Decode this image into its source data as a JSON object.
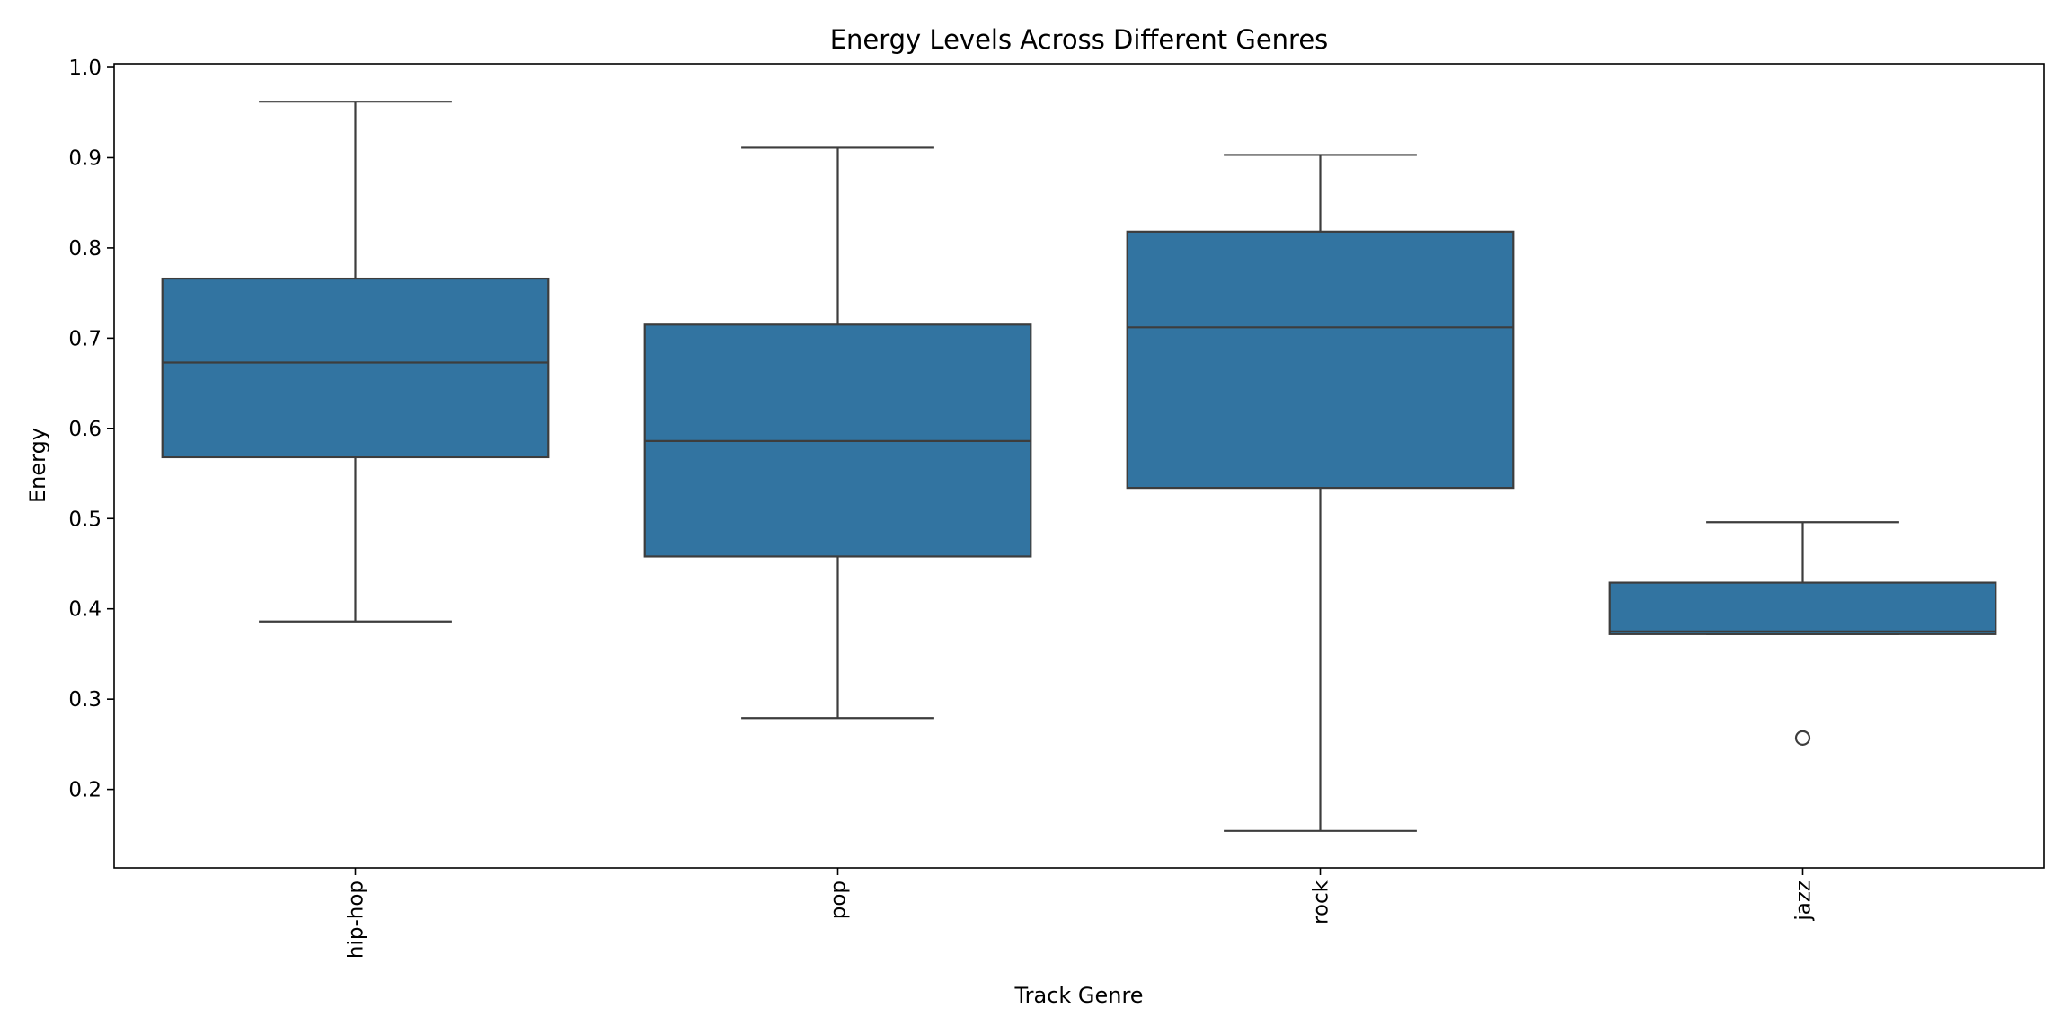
{
  "chart_data": {
    "type": "box",
    "title": "Energy Levels Across Different Genres",
    "xlabel": "Track Genre",
    "ylabel": "Energy",
    "categories": [
      "hip-hop",
      "pop",
      "rock",
      "jazz"
    ],
    "boxes": [
      {
        "category": "hip-hop",
        "whisker_low": 0.386,
        "q1": 0.568,
        "median": 0.673,
        "q3": 0.766,
        "whisker_high": 0.962,
        "outliers": []
      },
      {
        "category": "pop",
        "whisker_low": 0.279,
        "q1": 0.458,
        "median": 0.586,
        "q3": 0.715,
        "whisker_high": 0.911,
        "outliers": []
      },
      {
        "category": "rock",
        "whisker_low": 0.154,
        "q1": 0.534,
        "median": 0.712,
        "q3": 0.818,
        "whisker_high": 0.903,
        "outliers": []
      },
      {
        "category": "jazz",
        "whisker_low": 0.372,
        "q1": 0.372,
        "median": 0.375,
        "q3": 0.429,
        "whisker_high": 0.496,
        "outliers": [
          0.257
        ]
      }
    ],
    "ylim": [
      0.113,
      1.004
    ],
    "yticks": [
      "0.2",
      "0.3",
      "0.4",
      "0.5",
      "0.6",
      "0.7",
      "0.8",
      "0.9",
      "1.0"
    ],
    "grid": false,
    "legend": "none",
    "colors": {
      "box_fill": "#3274a1",
      "line": "#3d3d3d",
      "axis": "#000000"
    }
  }
}
